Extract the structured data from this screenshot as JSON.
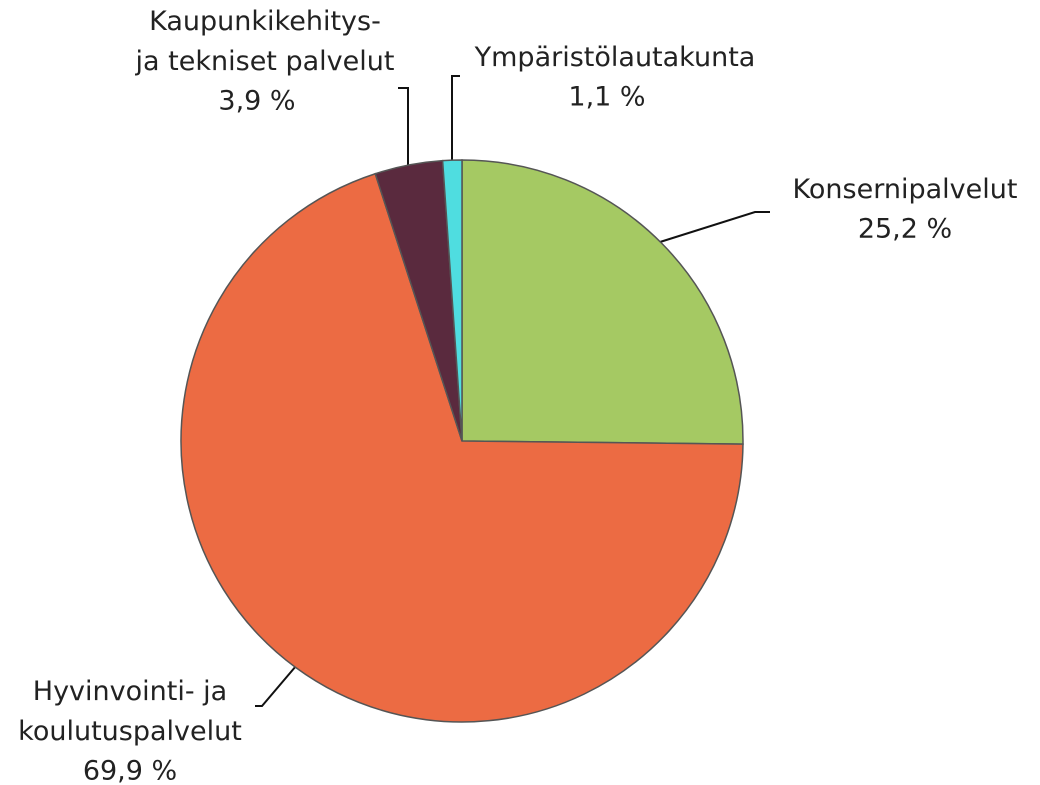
{
  "chart_data": {
    "type": "pie",
    "categories": [
      "Konsernipalvelut",
      "Hyvinvointi- ja\nkoulutuspalvelut",
      "Kaupunkikehitys-\nja tekniset palvelut",
      "Ympäristölautakunta"
    ],
    "values": [
      25.2,
      69.9,
      3.9,
      1.1
    ],
    "value_labels": [
      "25,2 %",
      "69,9 %",
      "3,9 %",
      "1,1 %"
    ],
    "colors": [
      "#a5c963",
      "#ec6b43",
      "#5a2a3e",
      "#4fdde0"
    ]
  }
}
